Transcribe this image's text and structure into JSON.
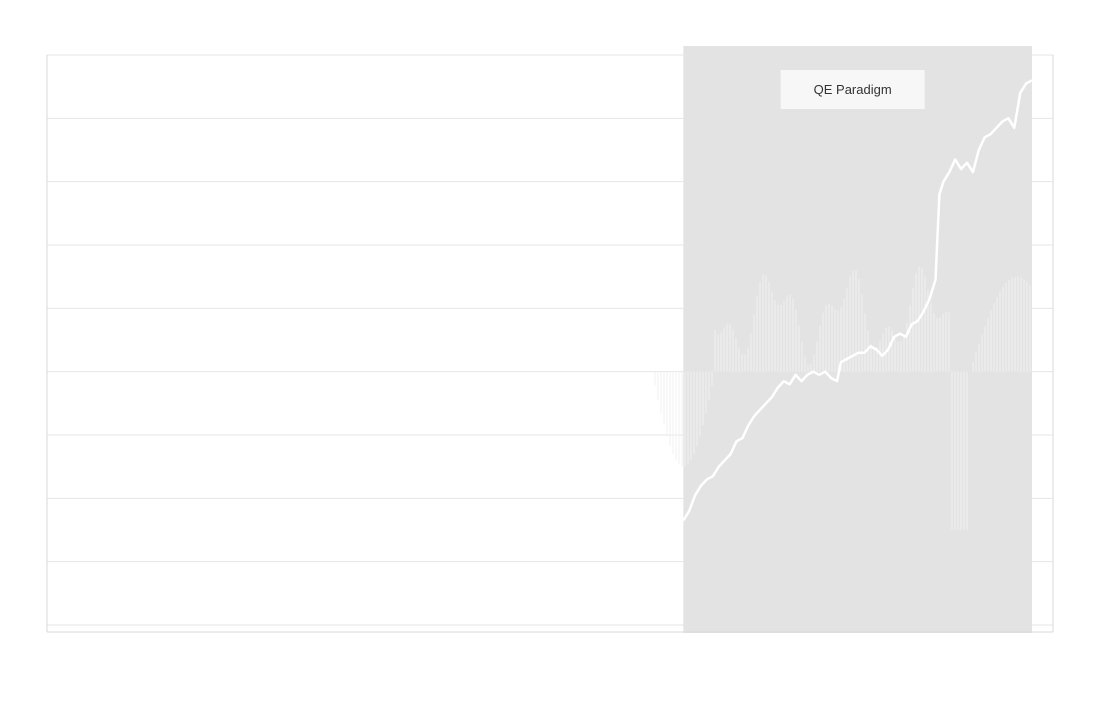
{
  "chart_data": {
    "type": "line",
    "title": "",
    "xlabel": "",
    "ylabel": "",
    "grid": true,
    "legend": "none",
    "colors": {
      "background": "#ffffff",
      "grid": "#e6e6e6",
      "axis": "#d9d9d9",
      "shade": "#e3e3e3",
      "line": "#ffffff",
      "bars": "#f2f2f2"
    },
    "ylim": [
      0,
      9
    ],
    "ticks": [
      0,
      1,
      2,
      3,
      4,
      5,
      6,
      7,
      8,
      9
    ],
    "xlim": [
      0,
      1000
    ],
    "annotations": [
      {
        "label": "QE Paradigm",
        "x_start": 646,
        "x_end": 1000
      }
    ],
    "series": [
      {
        "kind": "line",
        "points": [
          [
            646,
            1.65
          ],
          [
            652,
            1.8
          ],
          [
            658,
            2.05
          ],
          [
            664,
            2.2
          ],
          [
            670,
            2.3
          ],
          [
            676,
            2.35
          ],
          [
            682,
            2.5
          ],
          [
            688,
            2.6
          ],
          [
            694,
            2.7
          ],
          [
            700,
            2.9
          ],
          [
            706,
            2.95
          ],
          [
            712,
            3.15
          ],
          [
            718,
            3.3
          ],
          [
            724,
            3.4
          ],
          [
            730,
            3.5
          ],
          [
            736,
            3.6
          ],
          [
            742,
            3.75
          ],
          [
            748,
            3.85
          ],
          [
            754,
            3.8
          ],
          [
            760,
            3.95
          ],
          [
            766,
            3.85
          ],
          [
            772,
            3.95
          ],
          [
            778,
            4.0
          ],
          [
            784,
            3.95
          ],
          [
            790,
            4.0
          ],
          [
            796,
            3.9
          ],
          [
            802,
            3.85
          ],
          [
            806,
            4.15
          ],
          [
            812,
            4.2
          ],
          [
            818,
            4.25
          ],
          [
            824,
            4.3
          ],
          [
            830,
            4.3
          ],
          [
            836,
            4.4
          ],
          [
            842,
            4.35
          ],
          [
            848,
            4.25
          ],
          [
            854,
            4.35
          ],
          [
            860,
            4.55
          ],
          [
            866,
            4.6
          ],
          [
            872,
            4.55
          ],
          [
            878,
            4.75
          ],
          [
            884,
            4.8
          ],
          [
            890,
            4.95
          ],
          [
            896,
            5.15
          ],
          [
            902,
            5.45
          ],
          [
            906,
            6.8
          ],
          [
            910,
            7.0
          ],
          [
            916,
            7.15
          ],
          [
            922,
            7.35
          ],
          [
            928,
            7.2
          ],
          [
            934,
            7.3
          ],
          [
            940,
            7.15
          ],
          [
            946,
            7.5
          ],
          [
            952,
            7.7
          ],
          [
            958,
            7.75
          ],
          [
            964,
            7.85
          ],
          [
            970,
            7.95
          ],
          [
            976,
            8.0
          ],
          [
            982,
            7.85
          ],
          [
            988,
            8.4
          ],
          [
            994,
            8.55
          ],
          [
            1000,
            8.6
          ]
        ]
      }
    ]
  }
}
